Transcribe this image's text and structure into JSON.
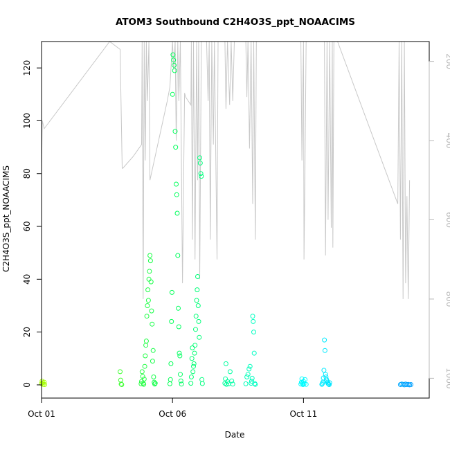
{
  "chart_data": {
    "type": "scatter",
    "title": "ATOM3 Southbound C2H4O3S_ppt_NOAACIMS",
    "xlabel": "Date",
    "ylabel": "C2H4O3S_ppt_NOAACIMS",
    "x_range_days": [
      0.0,
      14.8
    ],
    "x_ticks": [
      {
        "day": 0,
        "label": "Oct 01"
      },
      {
        "day": 5,
        "label": "Oct 06"
      },
      {
        "day": 10,
        "label": "Oct 11"
      }
    ],
    "ylim": [
      -5,
      130
    ],
    "y_ticks": [
      0,
      20,
      40,
      60,
      80,
      100,
      120
    ],
    "right_axis": {
      "reversed": true,
      "lim": [
        1050,
        150
      ],
      "ticks": [
        200,
        400,
        600,
        800,
        1000
      ],
      "color": "#b8b8b8"
    },
    "grid": false,
    "legend": "none",
    "point_color_scale": [
      "#a8ff00",
      "#00ff55",
      "#00ffff",
      "#0090ff"
    ],
    "series": [
      {
        "marker": "open-circle",
        "points": [
          [
            0.0,
            0.5
          ],
          [
            0.02,
            1.4
          ],
          [
            0.04,
            0.8
          ],
          [
            0.06,
            0.2
          ],
          [
            0.1,
            1.0
          ],
          [
            0.12,
            0.1
          ],
          [
            3.0,
            5.0
          ],
          [
            3.02,
            1.8
          ],
          [
            3.04,
            0.3
          ],
          [
            3.06,
            0.1
          ],
          [
            3.8,
            0.4
          ],
          [
            3.82,
            1.3
          ],
          [
            3.84,
            5.0
          ],
          [
            3.86,
            3.2
          ],
          [
            3.88,
            0.6
          ],
          [
            3.9,
            0.2
          ],
          [
            3.92,
            2.2
          ],
          [
            3.94,
            7.0
          ],
          [
            3.96,
            11.0
          ],
          [
            3.98,
            15.0
          ],
          [
            4.0,
            16.6
          ],
          [
            4.02,
            26.0
          ],
          [
            4.04,
            30.0
          ],
          [
            4.06,
            36.0
          ],
          [
            4.08,
            32.0
          ],
          [
            4.1,
            40.0
          ],
          [
            4.12,
            43.0
          ],
          [
            4.14,
            49.0
          ],
          [
            4.16,
            47.0
          ],
          [
            4.18,
            39.0
          ],
          [
            4.2,
            28.0
          ],
          [
            4.22,
            23.0
          ],
          [
            4.24,
            9.0
          ],
          [
            4.26,
            13.0
          ],
          [
            4.28,
            3.0
          ],
          [
            4.3,
            1.0
          ],
          [
            4.32,
            0.3
          ],
          [
            4.34,
            0.6
          ],
          [
            4.9,
            0.4
          ],
          [
            4.92,
            2.0
          ],
          [
            4.94,
            8.0
          ],
          [
            4.96,
            24.0
          ],
          [
            4.98,
            35.0
          ],
          [
            5.0,
            110.0
          ],
          [
            5.02,
            125.0
          ],
          [
            5.04,
            123.0
          ],
          [
            5.06,
            121.0
          ],
          [
            5.08,
            119.0
          ],
          [
            5.1,
            96.0
          ],
          [
            5.12,
            90.0
          ],
          [
            5.14,
            76.0
          ],
          [
            5.16,
            72.0
          ],
          [
            5.18,
            65.0
          ],
          [
            5.2,
            49.0
          ],
          [
            5.22,
            29.0
          ],
          [
            5.24,
            22.0
          ],
          [
            5.26,
            12.0
          ],
          [
            5.28,
            11.0
          ],
          [
            5.3,
            4.0
          ],
          [
            5.32,
            1.5
          ],
          [
            5.34,
            0.3
          ],
          [
            5.7,
            0.6
          ],
          [
            5.72,
            3.0
          ],
          [
            5.74,
            10.0
          ],
          [
            5.76,
            14.0
          ],
          [
            5.78,
            5.0
          ],
          [
            5.8,
            7.0
          ],
          [
            5.82,
            8.0
          ],
          [
            5.84,
            12.0
          ],
          [
            5.86,
            15.0
          ],
          [
            5.88,
            21.0
          ],
          [
            5.9,
            26.0
          ],
          [
            5.92,
            32.0
          ],
          [
            5.94,
            36.0
          ],
          [
            5.96,
            41.0
          ],
          [
            5.98,
            30.0
          ],
          [
            6.0,
            24.0
          ],
          [
            6.02,
            18.0
          ],
          [
            6.04,
            86.0
          ],
          [
            6.06,
            84.0
          ],
          [
            6.08,
            80.0
          ],
          [
            6.1,
            79.0
          ],
          [
            6.12,
            2.0
          ],
          [
            6.14,
            0.5
          ],
          [
            7.0,
            0.6
          ],
          [
            7.02,
            2.3
          ],
          [
            7.04,
            8.0
          ],
          [
            7.06,
            0.2
          ],
          [
            7.1,
            1.2
          ],
          [
            7.14,
            0.4
          ],
          [
            7.2,
            5.0
          ],
          [
            7.26,
            1.5
          ],
          [
            7.3,
            0.3
          ],
          [
            7.8,
            0.4
          ],
          [
            7.84,
            3.0
          ],
          [
            7.88,
            4.0
          ],
          [
            7.92,
            6.0
          ],
          [
            7.96,
            7.0
          ],
          [
            8.0,
            0.6
          ],
          [
            8.02,
            1.4
          ],
          [
            8.04,
            2.5
          ],
          [
            8.06,
            26.0
          ],
          [
            8.08,
            24.0
          ],
          [
            8.1,
            20.0
          ],
          [
            8.12,
            12.0
          ],
          [
            8.14,
            0.5
          ],
          [
            8.16,
            0.2
          ],
          [
            9.9,
            0.3
          ],
          [
            9.92,
            1.0
          ],
          [
            9.94,
            2.3
          ],
          [
            9.96,
            0.6
          ],
          [
            9.98,
            0.1
          ],
          [
            10.0,
            1.3
          ],
          [
            10.02,
            0.4
          ],
          [
            10.06,
            2.0
          ],
          [
            10.1,
            0.2
          ],
          [
            10.7,
            0.2
          ],
          [
            10.72,
            0.5
          ],
          [
            10.74,
            1.0
          ],
          [
            10.76,
            2.6
          ],
          [
            10.78,
            5.5
          ],
          [
            10.8,
            17.0
          ],
          [
            10.82,
            13.0
          ],
          [
            10.84,
            4.0
          ],
          [
            10.86,
            3.0
          ],
          [
            10.88,
            2.0
          ],
          [
            10.9,
            1.5
          ],
          [
            10.92,
            1.0
          ],
          [
            10.94,
            0.5
          ],
          [
            10.96,
            0.3
          ],
          [
            10.98,
            0.1
          ],
          [
            11.0,
            0.8
          ],
          [
            13.7,
            0.1
          ],
          [
            13.75,
            0.3
          ],
          [
            13.8,
            0.2
          ],
          [
            13.85,
            0.0
          ],
          [
            13.9,
            0.3
          ],
          [
            13.95,
            0.1
          ],
          [
            14.0,
            0.2
          ],
          [
            14.05,
            0.0
          ],
          [
            14.1,
            0.1
          ]
        ]
      },
      {
        "name": "",
        "axis": "right",
        "kind": "line",
        "color": "#c8c8c8",
        "points": [
          [
            0.0,
            150
          ],
          [
            0.0,
            480
          ],
          [
            0.03,
            350
          ],
          [
            0.1,
            370
          ],
          [
            2.6,
            150
          ],
          [
            3.0,
            170
          ],
          [
            3.08,
            470
          ],
          [
            3.1,
            470
          ],
          [
            3.5,
            440
          ],
          [
            3.82,
            410
          ],
          [
            3.84,
            150
          ],
          [
            3.88,
            800
          ],
          [
            3.92,
            150
          ],
          [
            3.96,
            450
          ],
          [
            4.0,
            150
          ],
          [
            4.04,
            300
          ],
          [
            4.1,
            150
          ],
          [
            4.14,
            500
          ],
          [
            4.8,
            300
          ],
          [
            4.9,
            265
          ],
          [
            5.0,
            150
          ],
          [
            5.04,
            220
          ],
          [
            5.1,
            150
          ],
          [
            5.14,
            400
          ],
          [
            5.2,
            150
          ],
          [
            5.24,
            300
          ],
          [
            5.3,
            150
          ],
          [
            5.38,
            760
          ],
          [
            5.46,
            280
          ],
          [
            5.5,
            290
          ],
          [
            5.7,
            310
          ],
          [
            5.72,
            150
          ],
          [
            5.76,
            650
          ],
          [
            5.8,
            150
          ],
          [
            5.86,
            700
          ],
          [
            5.92,
            150
          ],
          [
            5.96,
            500
          ],
          [
            6.0,
            150
          ],
          [
            6.04,
            750
          ],
          [
            6.1,
            150
          ],
          [
            6.3,
            150
          ],
          [
            6.36,
            300
          ],
          [
            6.4,
            150
          ],
          [
            6.44,
            650
          ],
          [
            6.5,
            150
          ],
          [
            6.56,
            410
          ],
          [
            6.6,
            150
          ],
          [
            6.7,
            700
          ],
          [
            6.74,
            150
          ],
          [
            6.8,
            150
          ],
          [
            7.0,
            150
          ],
          [
            7.04,
            320
          ],
          [
            7.1,
            150
          ],
          [
            7.18,
            310
          ],
          [
            7.24,
            150
          ],
          [
            7.3,
            300
          ],
          [
            7.36,
            150
          ],
          [
            7.5,
            150
          ],
          [
            7.8,
            150
          ],
          [
            7.84,
            290
          ],
          [
            7.88,
            150
          ],
          [
            7.94,
            420
          ],
          [
            8.0,
            150
          ],
          [
            8.06,
            560
          ],
          [
            8.1,
            150
          ],
          [
            8.16,
            650
          ],
          [
            8.2,
            150
          ],
          [
            8.24,
            150
          ],
          [
            8.3,
            150
          ],
          [
            8.6,
            150
          ],
          [
            9.9,
            150
          ],
          [
            9.94,
            450
          ],
          [
            10.0,
            150
          ],
          [
            10.02,
            700
          ],
          [
            10.06,
            460
          ],
          [
            10.1,
            150
          ],
          [
            10.2,
            150
          ],
          [
            10.3,
            150
          ],
          [
            10.5,
            150
          ],
          [
            10.8,
            150
          ],
          [
            10.84,
            690
          ],
          [
            10.9,
            150
          ],
          [
            10.94,
            600
          ],
          [
            11.0,
            150
          ],
          [
            11.06,
            620
          ],
          [
            11.1,
            150
          ],
          [
            11.12,
            670
          ],
          [
            11.16,
            150
          ],
          [
            11.2,
            150
          ],
          [
            11.3,
            150
          ],
          [
            13.6,
            560
          ],
          [
            13.65,
            150
          ],
          [
            13.7,
            650
          ],
          [
            13.75,
            150
          ],
          [
            13.8,
            800
          ],
          [
            13.85,
            150
          ],
          [
            13.9,
            760
          ],
          [
            13.95,
            540
          ],
          [
            14.0,
            800
          ],
          [
            14.05,
            500
          ]
        ]
      }
    ]
  }
}
